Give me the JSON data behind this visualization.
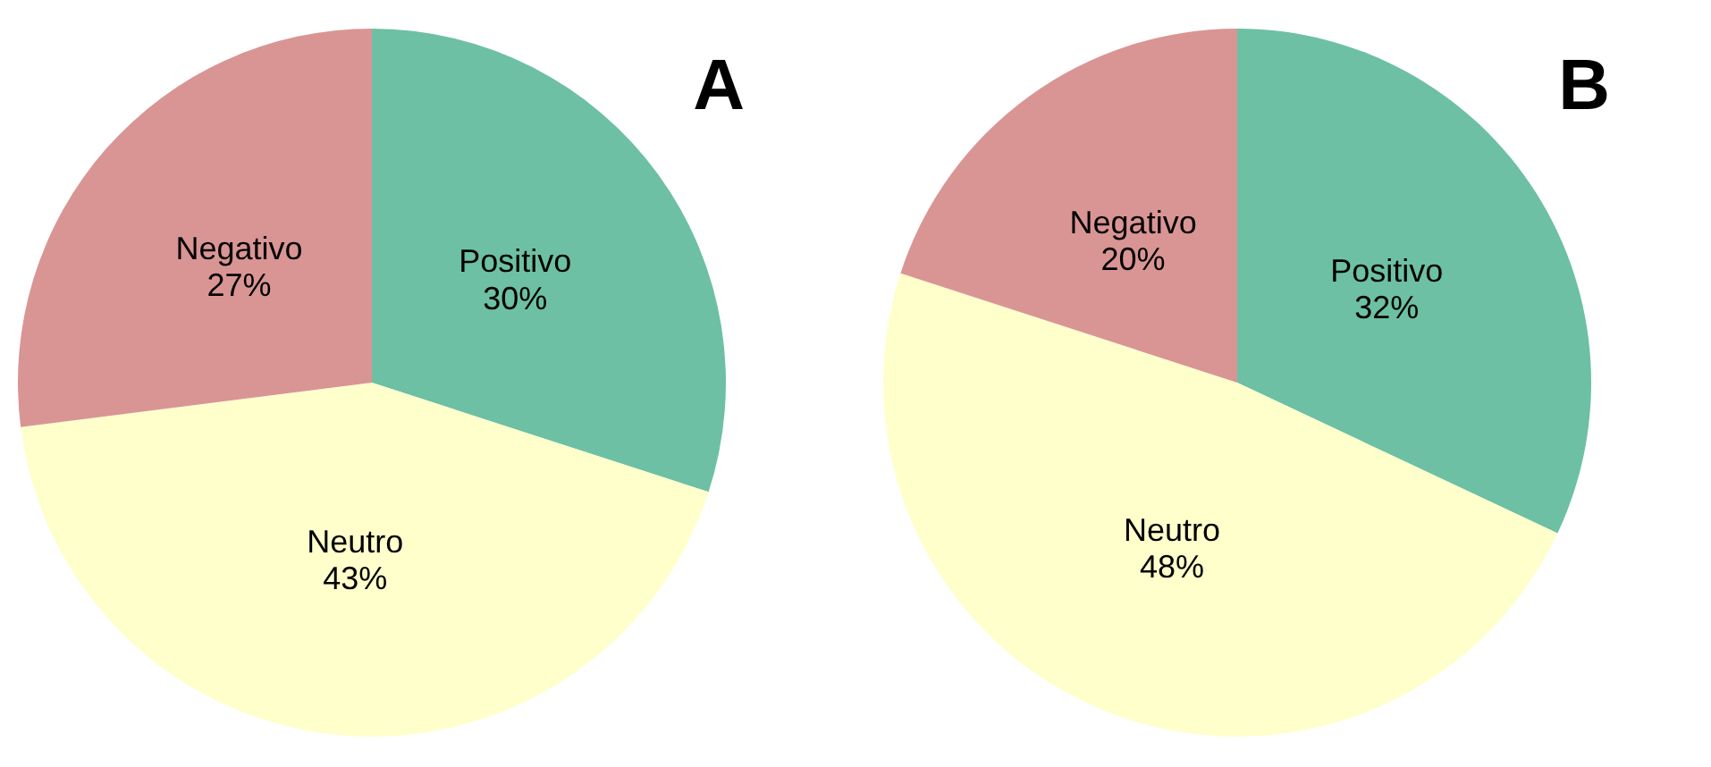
{
  "chart_data": [
    {
      "type": "pie",
      "title": "A",
      "categories": [
        "Positivo",
        "Neutro",
        "Negativo"
      ],
      "values": [
        30,
        43,
        27
      ],
      "value_labels": [
        "30%",
        "43%",
        "27%"
      ],
      "colors": [
        "#6dc0a3",
        "#ffffcc",
        "#d99594"
      ]
    },
    {
      "type": "pie",
      "title": "B",
      "categories": [
        "Positivo",
        "Neutro",
        "Negativo"
      ],
      "values": [
        32,
        48,
        20
      ],
      "value_labels": [
        "32%",
        "48%",
        "20%"
      ],
      "colors": [
        "#6dc0a3",
        "#ffffcc",
        "#d99594"
      ]
    }
  ]
}
